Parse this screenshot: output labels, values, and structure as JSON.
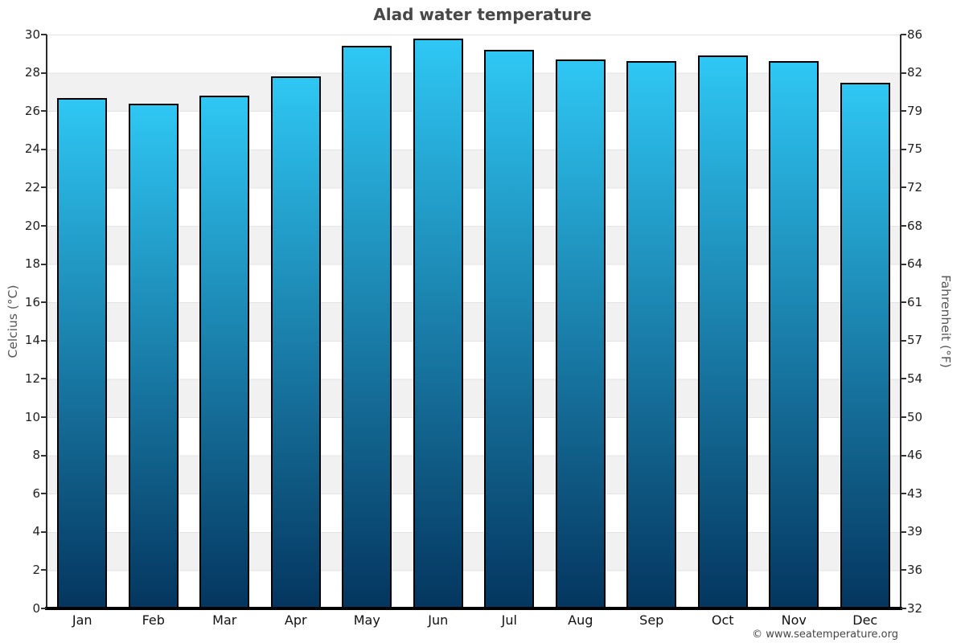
{
  "page": {
    "footer": "© www.seatemperature.org"
  },
  "chart_data": {
    "type": "bar",
    "title": "Alad water temperature",
    "categories": [
      "Jan",
      "Feb",
      "Mar",
      "Apr",
      "May",
      "Jun",
      "Jul",
      "Aug",
      "Sep",
      "Oct",
      "Nov",
      "Dec"
    ],
    "series": [
      {
        "name": "Water temperature",
        "unit": "°C",
        "values": [
          26.7,
          26.4,
          26.8,
          27.8,
          29.4,
          29.8,
          29.2,
          28.7,
          28.6,
          28.9,
          28.6,
          27.5
        ]
      }
    ],
    "left_axis": {
      "label": "Celcius (°C)",
      "range": [
        0,
        30
      ],
      "ticks_top_to_bottom": [
        30,
        28,
        26,
        24,
        22,
        20,
        18,
        16,
        14,
        12,
        10,
        8,
        6,
        4,
        2,
        0
      ]
    },
    "right_axis": {
      "label": "Fahrenheit (°F)",
      "ticks_top_to_bottom": [
        86,
        82,
        79,
        75,
        72,
        68,
        64,
        61,
        57,
        54,
        50,
        46,
        43,
        39,
        36,
        32
      ]
    },
    "legend": "none",
    "grid": "horizontal alternating bands every 2°C",
    "colors": {
      "bar_gradient_top": "#2fc7f4",
      "bar_gradient_bottom": "#04365f",
      "bar_border": "#000000",
      "band_light": "#ffffff",
      "band_dark": "#f1f1f1",
      "gridline": "#e3e3e3",
      "title_text": "#474747",
      "axis_line": "#2b2b2b"
    }
  }
}
